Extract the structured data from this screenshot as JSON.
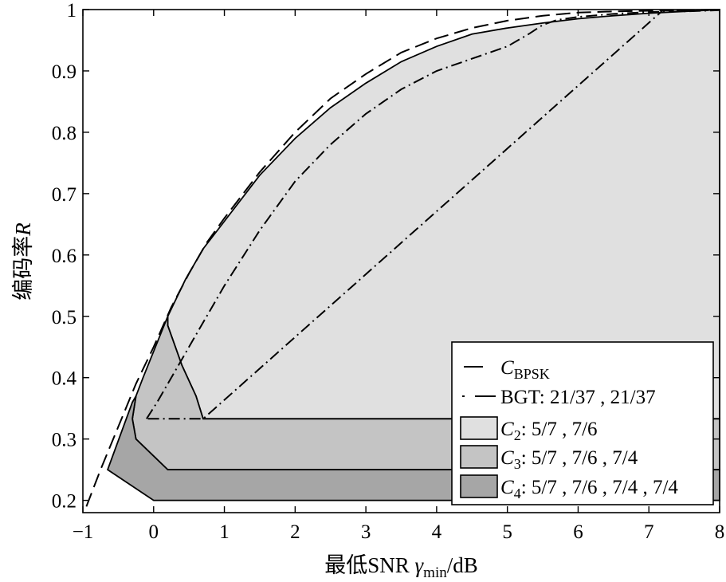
{
  "chart_data": {
    "type": "area",
    "xlabel_parts": {
      "prefix": "最低SNR ",
      "symbol": "γ",
      "subscript": "min",
      "suffix": "/dB"
    },
    "ylabel_parts": {
      "prefix": "编码率",
      "symbol": "R"
    },
    "xlim": [
      -1,
      8
    ],
    "ylim": [
      0.18,
      1.0
    ],
    "xticks": [
      -1,
      0,
      1,
      2,
      3,
      4,
      5,
      6,
      7,
      8
    ],
    "yticks": [
      0.2,
      0.3,
      0.4,
      0.5,
      0.6,
      0.7,
      0.8,
      0.9,
      1
    ],
    "grid": false,
    "legend_position": "bottom-right",
    "series": [
      {
        "name_parts": {
          "symbol": "C",
          "subscript": "BPSK",
          "rest": ""
        },
        "style": "dashed",
        "x": [
          -0.95,
          -0.75,
          -0.5,
          -0.25,
          0,
          0.25,
          0.5,
          0.75,
          1,
          1.5,
          2,
          2.5,
          3,
          3.5,
          4,
          4.5,
          5,
          5.5,
          6,
          6.5,
          7,
          7.5,
          8
        ],
        "y": [
          0.19,
          0.25,
          0.32,
          0.39,
          0.45,
          0.515,
          0.57,
          0.62,
          0.66,
          0.735,
          0.8,
          0.855,
          0.895,
          0.93,
          0.953,
          0.97,
          0.982,
          0.99,
          0.995,
          0.997,
          0.998,
          0.999,
          1.0
        ]
      },
      {
        "name_parts": {
          "text": "BGT: 21/37 , 21/37"
        },
        "style": "dash-dot",
        "x": [
          -0.1,
          0.05,
          0.2,
          0.4,
          0.6,
          0.8,
          1,
          1.5,
          2,
          2.5,
          3,
          3.5,
          4,
          4.5,
          5,
          5.3,
          5.5,
          5.7,
          6,
          6.5,
          7,
          7.5,
          8,
          7.2,
          0.7,
          -0.1
        ],
        "y": [
          0.333,
          0.36,
          0.39,
          0.43,
          0.47,
          0.51,
          0.55,
          0.64,
          0.72,
          0.78,
          0.83,
          0.87,
          0.9,
          0.92,
          0.94,
          0.96,
          0.975,
          0.983,
          0.988,
          0.993,
          0.996,
          0.997,
          0.999,
          0.999,
          0.333,
          0.333
        ]
      },
      {
        "name_parts": {
          "symbol": "C",
          "subscript": "2",
          "rest": ": 5/7 , 7/6"
        },
        "style": "fill",
        "color": "#e0e0e0",
        "x": [
          0.2,
          0.45,
          0.7,
          1,
          1.5,
          2,
          2.5,
          3,
          3.5,
          4,
          4.5,
          5,
          5.5,
          6,
          6.5,
          7,
          7.5,
          8,
          8,
          0.7,
          0.6,
          0.4,
          0.2
        ],
        "y": [
          0.5,
          0.56,
          0.61,
          0.655,
          0.73,
          0.79,
          0.84,
          0.88,
          0.915,
          0.94,
          0.96,
          0.97,
          0.978,
          0.985,
          0.99,
          0.994,
          0.997,
          1.0,
          0.333,
          0.333,
          0.37,
          0.42,
          0.485
        ]
      },
      {
        "name_parts": {
          "symbol": "C",
          "subscript": "3",
          "rest": ": 5/7 , 7/6 , 7/4"
        },
        "style": "fill",
        "color": "#c4c4c4",
        "x": [
          -0.15,
          0.2,
          0.2,
          0.4,
          0.6,
          0.7,
          8,
          8,
          0.2,
          -0.25,
          -0.3,
          -0.25,
          -0.15
        ],
        "y": [
          0.4,
          0.5,
          0.485,
          0.42,
          0.37,
          0.333,
          0.333,
          0.25,
          0.25,
          0.3,
          0.333,
          0.37,
          0.4
        ]
      },
      {
        "name_parts": {
          "symbol": "C",
          "subscript": "4",
          "rest": ": 5/7 , 7/6 , 7/4 , 7/4"
        },
        "style": "fill",
        "color": "#a6a6a6",
        "x": [
          -0.65,
          -0.3,
          -0.25,
          -0.3,
          -0.25,
          0.2,
          8,
          8,
          0,
          -0.65
        ],
        "y": [
          0.25,
          0.36,
          0.37,
          0.333,
          0.3,
          0.25,
          0.25,
          0.2,
          0.2,
          0.25
        ]
      }
    ]
  }
}
